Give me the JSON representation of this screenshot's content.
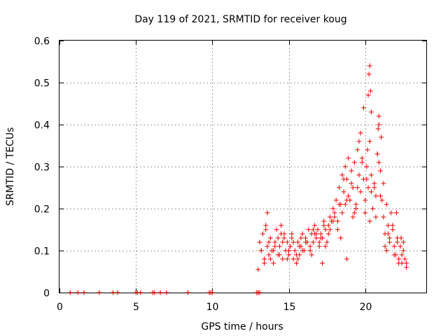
{
  "chart_data": {
    "type": "scatter",
    "title": "Day 119 of 2021, SRMTID for receiver koug",
    "xlabel": "GPS time / hours",
    "ylabel": "SRMTID / TECUs",
    "xlim": [
      0,
      24
    ],
    "ylim": [
      0,
      0.6
    ],
    "x_ticks": [
      "0",
      "5",
      "10",
      "15",
      "20"
    ],
    "y_ticks": [
      "0",
      "0.1",
      "0.2",
      "0.3",
      "0.4",
      "0.5",
      "0.6"
    ],
    "grid": true,
    "marker": "+",
    "series": [
      {
        "name": "SRMTID",
        "color": "#e60000",
        "x": [
          0.7,
          1.2,
          1.6,
          2.6,
          3.5,
          3.8,
          5.0,
          5.1,
          5.3,
          6.1,
          6.2,
          6.6,
          7.0,
          8.4,
          9.8,
          9.9,
          10.0,
          12.9,
          13.0,
          13.0,
          13.1,
          13.0,
          13.1,
          13.2,
          13.3,
          13.4,
          13.5,
          13.6,
          13.7,
          13.8,
          13.9,
          14.0,
          14.1,
          14.2,
          14.3,
          14.4,
          14.5,
          14.6,
          14.7,
          14.8,
          14.9,
          15.0,
          15.1,
          15.2,
          15.3,
          15.4,
          15.5,
          15.6,
          15.7,
          15.8,
          15.9,
          16.0,
          16.1,
          16.2,
          16.3,
          16.4,
          16.5,
          16.6,
          16.7,
          16.8,
          16.9,
          17.0,
          17.1,
          17.2,
          17.3,
          17.4,
          17.5,
          17.6,
          17.7,
          17.8,
          17.9,
          18.0,
          18.1,
          18.2,
          18.3,
          18.4,
          18.5,
          18.6,
          18.7,
          18.8,
          18.9,
          19.0,
          19.1,
          19.2,
          19.3,
          19.4,
          19.5,
          19.6,
          19.7,
          19.8,
          19.9,
          20.0,
          20.1,
          20.2,
          20.3,
          20.4,
          20.5,
          20.6,
          20.7,
          20.8,
          20.9,
          21.0,
          21.1,
          21.2,
          21.3,
          21.4,
          21.5,
          21.6,
          21.7,
          21.8,
          21.9,
          22.0,
          22.1,
          22.2,
          22.3,
          22.4,
          22.5,
          22.6,
          22.7,
          13.2,
          13.5,
          13.8,
          14.1,
          14.4,
          14.7,
          15.0,
          15.3,
          15.6,
          15.9,
          16.2,
          16.5,
          16.8,
          17.1,
          17.4,
          17.7,
          18.0,
          18.3,
          18.6,
          18.9,
          19.2,
          19.5,
          19.8,
          20.1,
          20.4,
          20.7,
          21.0,
          21.3,
          21.6,
          21.9,
          22.2,
          22.5,
          13.4,
          13.7,
          14.0,
          14.3,
          14.6,
          14.9,
          15.2,
          15.5,
          15.8,
          16.1,
          16.4,
          16.7,
          17.0,
          17.3,
          17.6,
          17.9,
          18.2,
          18.5,
          18.8,
          19.1,
          19.4,
          19.7,
          20.0,
          20.3,
          20.6,
          20.9,
          21.2,
          21.5,
          21.8,
          22.1,
          22.4,
          22.7,
          13.6,
          14.5,
          15.7,
          16.6,
          17.2,
          18.4,
          18.7,
          18.8,
          19.3,
          19.6,
          19.9,
          20.15,
          20.2,
          20.25,
          20.3,
          20.35,
          20.4,
          20.8,
          20.85,
          20.9,
          21.05,
          21.4,
          22.05,
          22.35
        ],
        "y": [
          0,
          0,
          0,
          0,
          0,
          0,
          0,
          0,
          0,
          0,
          0,
          0,
          0,
          0,
          0,
          0,
          0,
          0,
          0,
          0,
          0,
          0.055,
          0.12,
          0.1,
          0.14,
          0.08,
          0.16,
          0.11,
          0.09,
          0.13,
          0.1,
          0.07,
          0.12,
          0.15,
          0.09,
          0.11,
          0.16,
          0.08,
          0.13,
          0.1,
          0.12,
          0.09,
          0.11,
          0.13,
          0.08,
          0.1,
          0.07,
          0.12,
          0.09,
          0.11,
          0.14,
          0.1,
          0.13,
          0.12,
          0.15,
          0.11,
          0.14,
          0.12,
          0.16,
          0.13,
          0.15,
          0.12,
          0.14,
          0.13,
          0.17,
          0.15,
          0.12,
          0.16,
          0.18,
          0.17,
          0.2,
          0.19,
          0.22,
          0.17,
          0.25,
          0.21,
          0.28,
          0.24,
          0.3,
          0.27,
          0.32,
          0.22,
          0.29,
          0.25,
          0.31,
          0.21,
          0.34,
          0.28,
          0.38,
          0.32,
          0.27,
          0.22,
          0.3,
          0.25,
          0.36,
          0.28,
          0.2,
          0.26,
          0.23,
          0.33,
          0.4,
          0.29,
          0.22,
          0.18,
          0.14,
          0.1,
          0.16,
          0.12,
          0.19,
          0.15,
          0.11,
          0.09,
          0.13,
          0.08,
          0.11,
          0.07,
          0.1,
          0.08,
          0.06,
          0.1,
          0.15,
          0.08,
          0.11,
          0.09,
          0.14,
          0.1,
          0.12,
          0.08,
          0.1,
          0.12,
          0.09,
          0.14,
          0.13,
          0.11,
          0.15,
          0.18,
          0.21,
          0.27,
          0.23,
          0.18,
          0.25,
          0.31,
          0.27,
          0.24,
          0.18,
          0.23,
          0.11,
          0.13,
          0.09,
          0.07,
          0.12,
          0.07,
          0.12,
          0.1,
          0.13,
          0.12,
          0.08,
          0.14,
          0.09,
          0.13,
          0.12,
          0.1,
          0.14,
          0.11,
          0.16,
          0.14,
          0.17,
          0.15,
          0.19,
          0.22,
          0.26,
          0.2,
          0.24,
          0.19,
          0.17,
          0.25,
          0.31,
          0.26,
          0.14,
          0.16,
          0.12,
          0.09,
          0.07,
          0.19,
          0.14,
          0.11,
          0.15,
          0.07,
          0.13,
          0.21,
          0.08,
          0.19,
          0.36,
          0.44,
          0.34,
          0.47,
          0.52,
          0.54,
          0.48,
          0.43,
          0.33,
          0.39,
          0.42,
          0.37,
          0.21,
          0.19,
          0.13
        ]
      }
    ]
  }
}
